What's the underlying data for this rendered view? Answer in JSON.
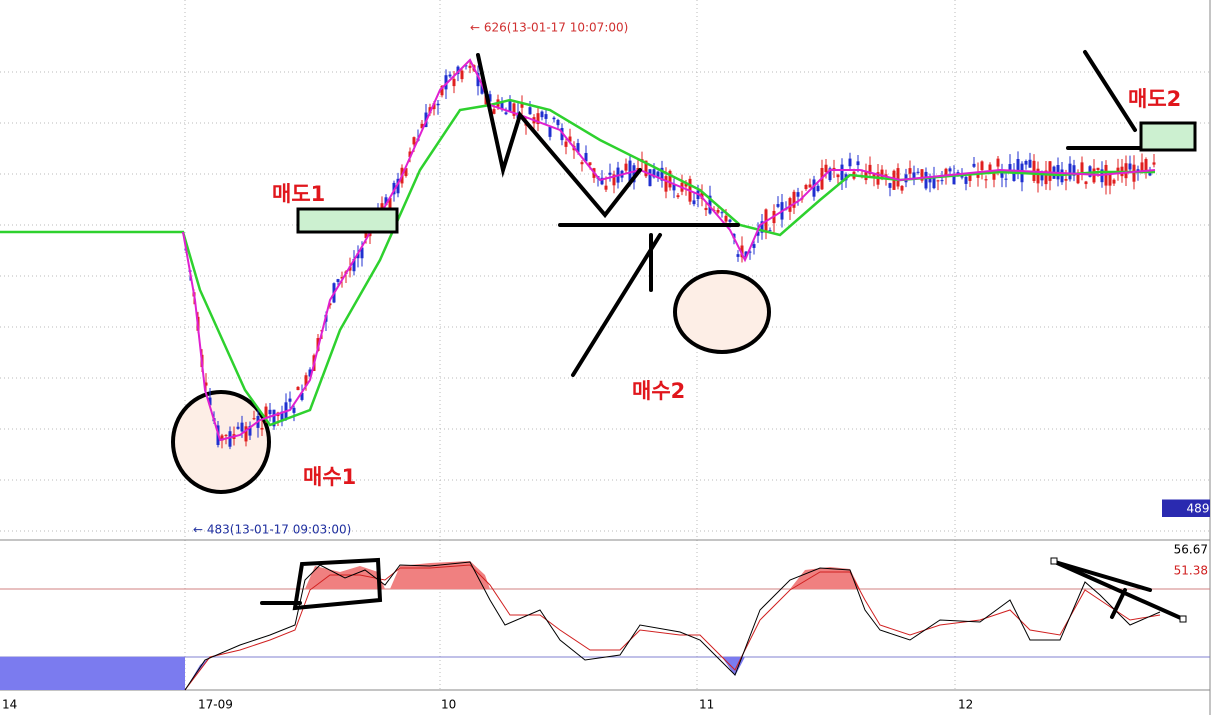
{
  "annotations": {
    "high": "← 626(13-01-17 10:07:00)",
    "low": "← 483(13-01-17 09:03:00)",
    "sell1": "매도1",
    "sell2": "매도2",
    "buy1": "매수1",
    "buy2": "매수2"
  },
  "price_label": "489",
  "indicator": {
    "value1": "56.67",
    "value2": "51.38"
  },
  "x_axis": [
    "14",
    "17-09",
    "10",
    "11",
    "12"
  ]
}
